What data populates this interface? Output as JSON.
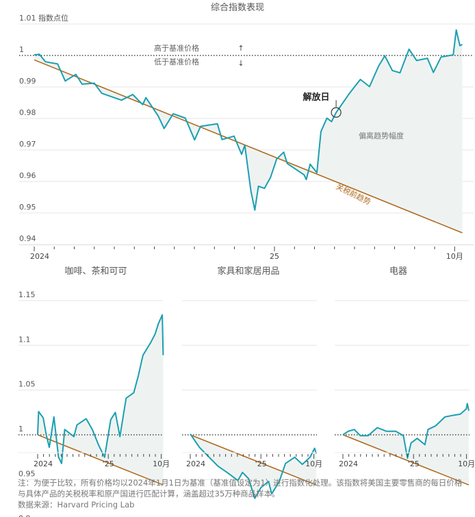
{
  "colors": {
    "line": "#1a9fb0",
    "trend": "#b06a1e",
    "fill": "#eef3f2",
    "grid": "#e6e6e6",
    "baseline": "#444444",
    "text": "#555555"
  },
  "chart_data": [
    {
      "type": "line",
      "title": "综合指数表现",
      "ylabel": "指数点位",
      "x_unit": "months since 2024-01",
      "x_ticks": [
        {
          "m": 0,
          "label": "2024"
        },
        {
          "m": 12,
          "label": "25"
        },
        {
          "m": 21,
          "label": "10月"
        }
      ],
      "y_ticks": [
        1.01,
        1.0,
        0.99,
        0.98,
        0.97,
        0.96,
        0.95,
        0.94
      ],
      "ylim": [
        0.94,
        1.01
      ],
      "baseline": 1.0,
      "annotations": {
        "above": "高于基准价格",
        "below": "低于基准价格",
        "arrow_up": "↑",
        "arrow_down": "↓",
        "event": "解放日",
        "event_m": 15.08,
        "event_v": 0.9819,
        "gap": "偏离趋势幅度",
        "trend": "关税前趋势"
      },
      "trend": [
        [
          0,
          0.9986
        ],
        [
          21.38,
          0.9437
        ]
      ],
      "series": [
        [
          0,
          1.0002
        ],
        [
          0.26,
          1.0004
        ],
        [
          0.56,
          0.998
        ],
        [
          1.17,
          0.9973
        ],
        [
          1.55,
          0.9919
        ],
        [
          2.08,
          0.994
        ],
        [
          2.39,
          0.9909
        ],
        [
          3.0,
          0.9912
        ],
        [
          3.37,
          0.988
        ],
        [
          4.36,
          0.9858
        ],
        [
          4.92,
          0.9876
        ],
        [
          5.42,
          0.9844
        ],
        [
          5.58,
          0.9866
        ],
        [
          6.19,
          0.9808
        ],
        [
          6.49,
          0.9768
        ],
        [
          6.94,
          0.9815
        ],
        [
          7.55,
          0.9801
        ],
        [
          8.01,
          0.9732
        ],
        [
          8.31,
          0.9775
        ],
        [
          9.15,
          0.9783
        ],
        [
          9.38,
          0.9733
        ],
        [
          9.98,
          0.9744
        ],
        [
          10.36,
          0.9686
        ],
        [
          10.52,
          0.9715
        ],
        [
          10.82,
          0.9571
        ],
        [
          11.02,
          0.9509
        ],
        [
          11.2,
          0.9585
        ],
        [
          11.5,
          0.9578
        ],
        [
          11.81,
          0.9614
        ],
        [
          12.11,
          0.9671
        ],
        [
          12.46,
          0.9693
        ],
        [
          12.64,
          0.9657
        ],
        [
          13.48,
          0.9621
        ],
        [
          13.59,
          0.9606
        ],
        [
          13.78,
          0.9655
        ],
        [
          14.12,
          0.9628
        ],
        [
          14.32,
          0.9758
        ],
        [
          14.62,
          0.9801
        ],
        [
          14.85,
          0.979
        ],
        [
          15.08,
          0.9819
        ],
        [
          15.76,
          0.9881
        ],
        [
          16.29,
          0.9924
        ],
        [
          16.75,
          0.9901
        ],
        [
          17.2,
          0.9966
        ],
        [
          17.51,
          0.9999
        ],
        [
          17.89,
          0.9952
        ],
        [
          18.27,
          0.9945
        ],
        [
          18.72,
          1.002
        ],
        [
          19.1,
          0.9984
        ],
        [
          19.64,
          0.9991
        ],
        [
          19.94,
          0.9946
        ],
        [
          20.32,
          0.9995
        ],
        [
          20.93,
          1.0002
        ],
        [
          21.08,
          1.0081
        ],
        [
          21.26,
          1.0031
        ],
        [
          21.38,
          1.0035
        ]
      ]
    },
    {
      "type": "line",
      "title": "咖啡、茶和可可",
      "x_ticks": [
        {
          "m": 0,
          "label": "2024"
        },
        {
          "m": 12,
          "label": "'25"
        },
        {
          "m": 21,
          "label": "10月"
        }
      ],
      "y_ticks": [
        1.15,
        1.1,
        1.05,
        1.0,
        0.95,
        0.9
      ],
      "ylim": [
        0.9,
        1.15
      ],
      "baseline": 1.0,
      "trend": [
        [
          0,
          1.0
        ],
        [
          21.33,
          0.944
        ]
      ],
      "series": [
        [
          0,
          1.0
        ],
        [
          0.16,
          1.026
        ],
        [
          0.94,
          1.019
        ],
        [
          1.46,
          1.0
        ],
        [
          1.98,
          0.986
        ],
        [
          2.77,
          1.02
        ],
        [
          3.55,
          0.975
        ],
        [
          4.07,
          0.968
        ],
        [
          4.59,
          1.006
        ],
        [
          6.16,
          0.998
        ],
        [
          6.68,
          1.011
        ],
        [
          8.24,
          1.018
        ],
        [
          9.29,
          1.006
        ],
        [
          10.33,
          0.989
        ],
        [
          11.37,
          0.975
        ],
        [
          12.42,
          1.017
        ],
        [
          13.2,
          1.025
        ],
        [
          13.98,
          0.998
        ],
        [
          15.03,
          1.041
        ],
        [
          16.33,
          1.047
        ],
        [
          17.11,
          1.066
        ],
        [
          17.9,
          1.089
        ],
        [
          19.2,
          1.103
        ],
        [
          19.98,
          1.113
        ],
        [
          20.5,
          1.124
        ],
        [
          21.18,
          1.134
        ],
        [
          21.33,
          1.089
        ]
      ]
    },
    {
      "type": "line",
      "title": "家具和家居用品",
      "x_ticks": [
        {
          "m": 0,
          "label": "2024"
        },
        {
          "m": 12,
          "label": "'25"
        },
        {
          "m": 21,
          "label": "10月"
        }
      ],
      "y_ticks": [
        1.15,
        1.1,
        1.05,
        1.0,
        0.95,
        0.9
      ],
      "ylim": [
        0.9,
        1.15
      ],
      "baseline": 1.0,
      "trend": [
        [
          0,
          1.0
        ],
        [
          21.39,
          0.944
        ]
      ],
      "series": [
        [
          0,
          1.001
        ],
        [
          1.56,
          0.986
        ],
        [
          3.65,
          0.972
        ],
        [
          4.7,
          0.965
        ],
        [
          6.26,
          0.958
        ],
        [
          8.09,
          0.949
        ],
        [
          8.87,
          0.958
        ],
        [
          9.91,
          0.951
        ],
        [
          10.96,
          0.929
        ],
        [
          12.0,
          0.941
        ],
        [
          13.3,
          0.948
        ],
        [
          13.83,
          0.934
        ],
        [
          15.13,
          0.948
        ],
        [
          16.17,
          0.968
        ],
        [
          17.74,
          0.975
        ],
        [
          19.04,
          0.967
        ],
        [
          20.35,
          0.975
        ],
        [
          21.13,
          0.985
        ],
        [
          21.39,
          0.979
        ]
      ]
    },
    {
      "type": "line",
      "title": "电器",
      "x_ticks": [
        {
          "m": 0,
          "label": "2024"
        },
        {
          "m": 12,
          "label": "'25"
        },
        {
          "m": 21,
          "label": "10月"
        }
      ],
      "y_ticks": [
        1.15,
        1.1,
        1.05,
        1.0,
        0.95,
        0.9
      ],
      "ylim": [
        0.9,
        1.15
      ],
      "baseline": 1.0,
      "trend": [
        [
          0,
          1.0
        ],
        [
          21.39,
          0.944
        ]
      ],
      "series": [
        [
          0,
          1.0
        ],
        [
          0.89,
          1.004
        ],
        [
          1.93,
          1.006
        ],
        [
          2.97,
          0.999
        ],
        [
          4.28,
          0.999
        ],
        [
          5.84,
          1.008
        ],
        [
          7.41,
          1.004
        ],
        [
          8.97,
          1.004
        ],
        [
          10.28,
          0.999
        ],
        [
          10.96,
          0.974
        ],
        [
          11.58,
          0.991
        ],
        [
          12.63,
          0.996
        ],
        [
          13.93,
          0.989
        ],
        [
          14.45,
          1.006
        ],
        [
          15.76,
          1.01
        ],
        [
          17.32,
          1.02
        ],
        [
          18.89,
          1.022
        ],
        [
          19.93,
          1.023
        ],
        [
          20.97,
          1.029
        ],
        [
          21.13,
          1.035
        ],
        [
          21.39,
          1.027
        ]
      ]
    }
  ],
  "footer": {
    "note": "注：为便于比较，所有价格均以2024年1月1日为基准（基准值设定为1）进行指数化处理。该指数将美国主要零售商的每日价格与具体产品的关税税率和原产国进行匹配计算，涵盖超过35万种商品样本。",
    "source": "数据来源：Harvard Pricing Lab"
  }
}
